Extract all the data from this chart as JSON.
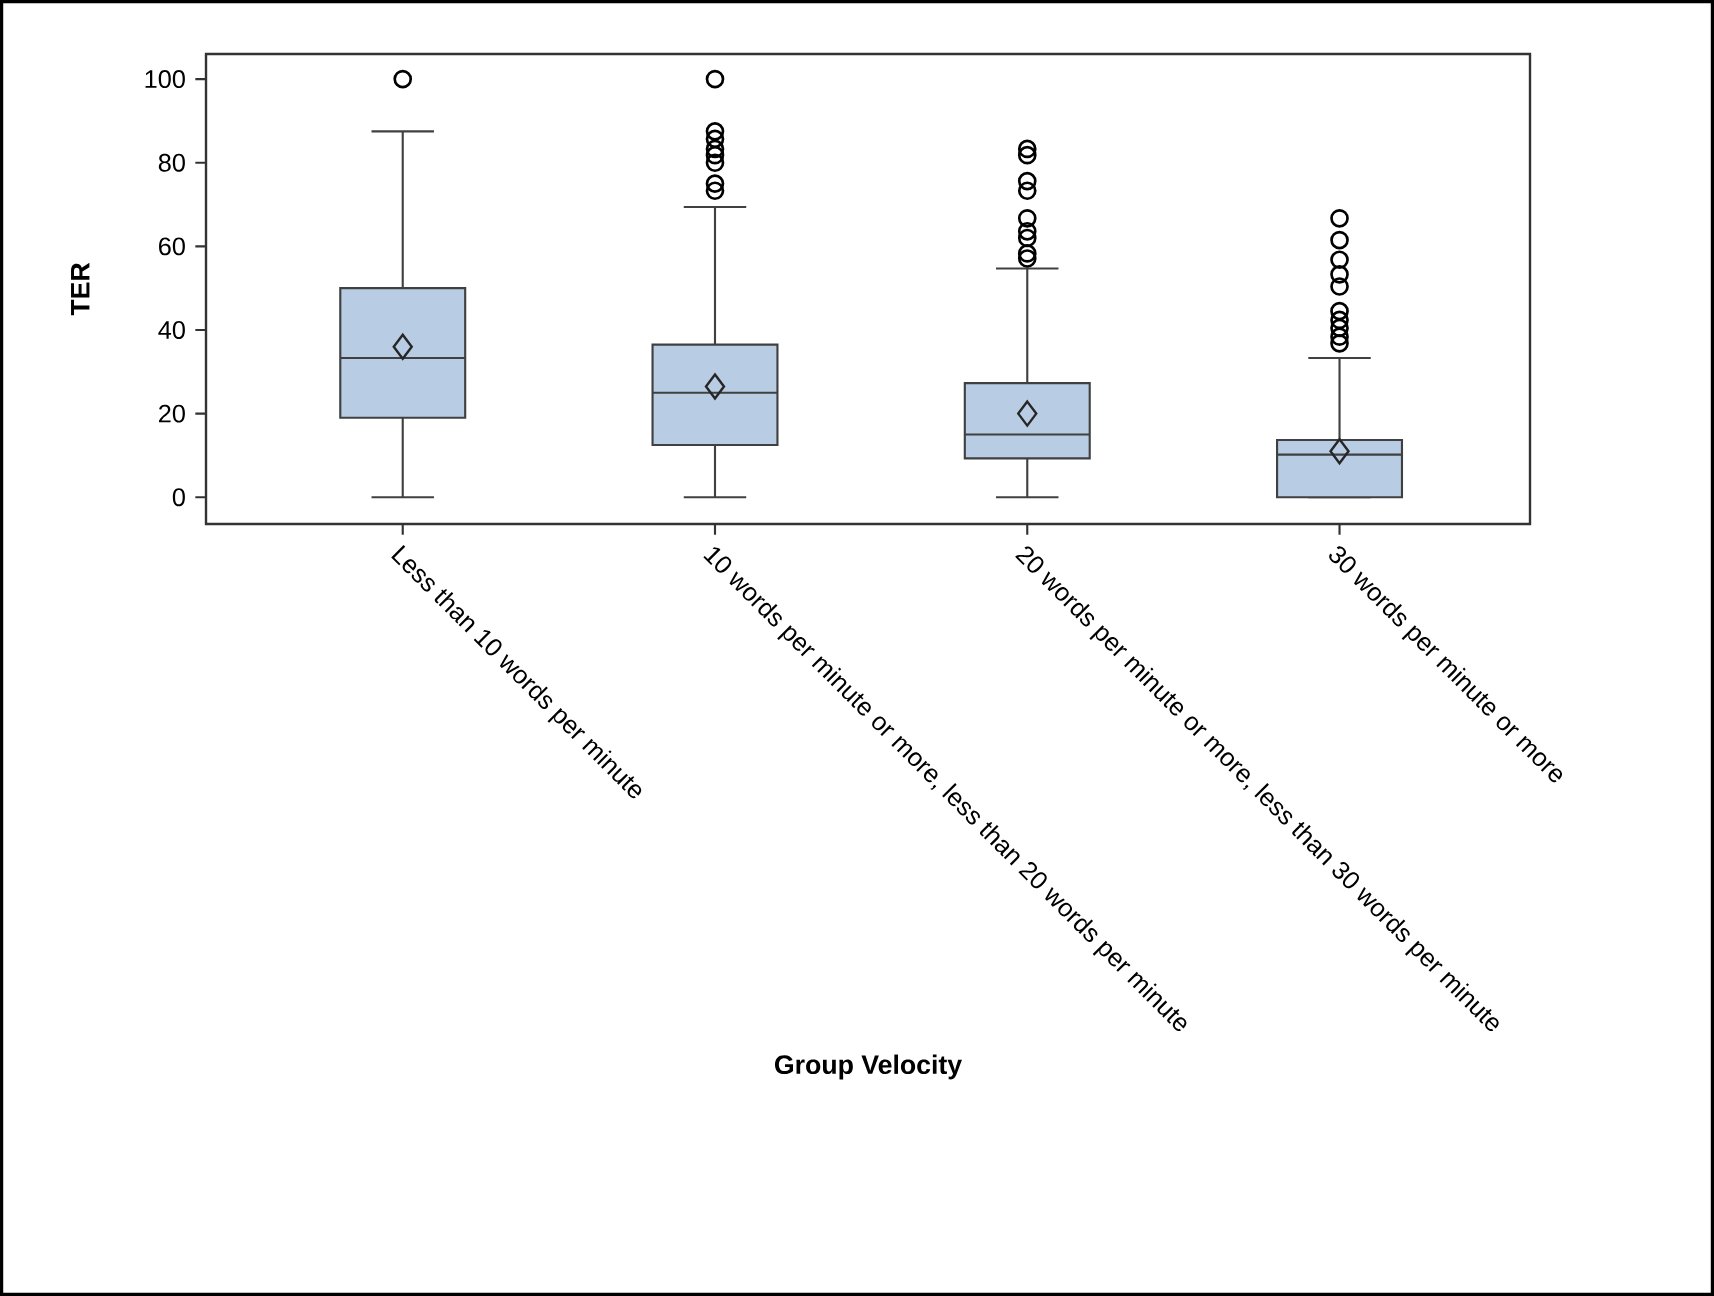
{
  "chart_data": {
    "type": "box",
    "xlabel": "Group Velocity",
    "ylabel": "TER",
    "categories": [
      "Less than 10 words per minute",
      "10 words per minute or more, less than 20 words per minute",
      "20 words per minute or more, less than 30 words per minute",
      "30 words per minute or more"
    ],
    "color": "#b8cce4",
    "boxes": [
      {
        "low": 0,
        "q1": 19,
        "median": 33.3,
        "q3": 50,
        "high": 87.5,
        "mean": 36,
        "outliers": [
          100
        ]
      },
      {
        "low": 0,
        "q1": 12.5,
        "median": 25,
        "q3": 36.5,
        "high": 69.4,
        "mean": 26.5,
        "outliers": [
          100,
          87.5,
          85.7,
          83.3,
          81.8,
          80,
          75,
          73.3
        ]
      },
      {
        "low": 0,
        "q1": 9.3,
        "median": 15,
        "q3": 27.3,
        "high": 54.7,
        "mean": 20,
        "outliers": [
          83.3,
          81.8,
          75.6,
          73.3,
          66.7,
          63.6,
          62,
          58.3,
          57.1
        ]
      },
      {
        "low": 0,
        "q1": 0,
        "median": 10.2,
        "q3": 13.7,
        "high": 33.3,
        "mean": 11,
        "outliers": [
          66.7,
          61.5,
          56.8,
          53.3,
          50.4,
          44.5,
          42.4,
          40.5,
          38.4,
          36.8
        ]
      }
    ],
    "ylim": [
      -6.4,
      106
    ],
    "yticks": [
      0,
      20,
      40,
      60,
      80,
      100
    ]
  }
}
